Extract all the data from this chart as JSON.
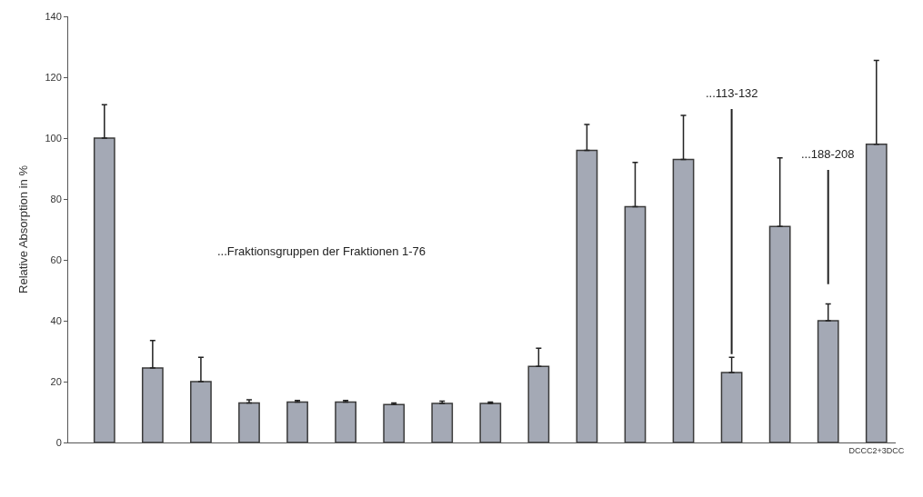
{
  "chart_data": {
    "type": "bar",
    "ylabel": "Relative Absorption in %",
    "categories": [
      null,
      null,
      null,
      null,
      null,
      null,
      null,
      null,
      null,
      null,
      null,
      null,
      null,
      null,
      null,
      null,
      "DCCC2+3DCC"
    ],
    "values": [
      100,
      24.5,
      20,
      13,
      13.3,
      13.3,
      12.5,
      12.8,
      12.8,
      25,
      96,
      77.5,
      93,
      23,
      71,
      40,
      98
    ],
    "errors": [
      [
        100,
        111
      ],
      [
        24.5,
        33.5
      ],
      [
        20,
        28
      ],
      [
        13,
        14
      ],
      [
        13.3,
        13.8
      ],
      [
        13.3,
        13.8
      ],
      [
        12.5,
        13
      ],
      [
        12.8,
        13.6
      ],
      [
        12.8,
        13.3
      ],
      [
        25,
        31
      ],
      [
        96,
        104.5
      ],
      [
        77.5,
        92
      ],
      [
        93,
        107.5
      ],
      [
        23,
        28
      ],
      [
        71,
        93.5
      ],
      [
        40,
        45.5
      ],
      [
        98,
        125.5
      ]
    ],
    "color": "#a4a9b5",
    "ylim": [
      0,
      140
    ],
    "yticks": [
      0,
      20,
      40,
      60,
      80,
      100,
      120,
      140
    ],
    "legend": false,
    "annotations": [
      "...Fraktionsgruppen der Fraktionen 1-76",
      "...113-132",
      "...188-208"
    ]
  }
}
